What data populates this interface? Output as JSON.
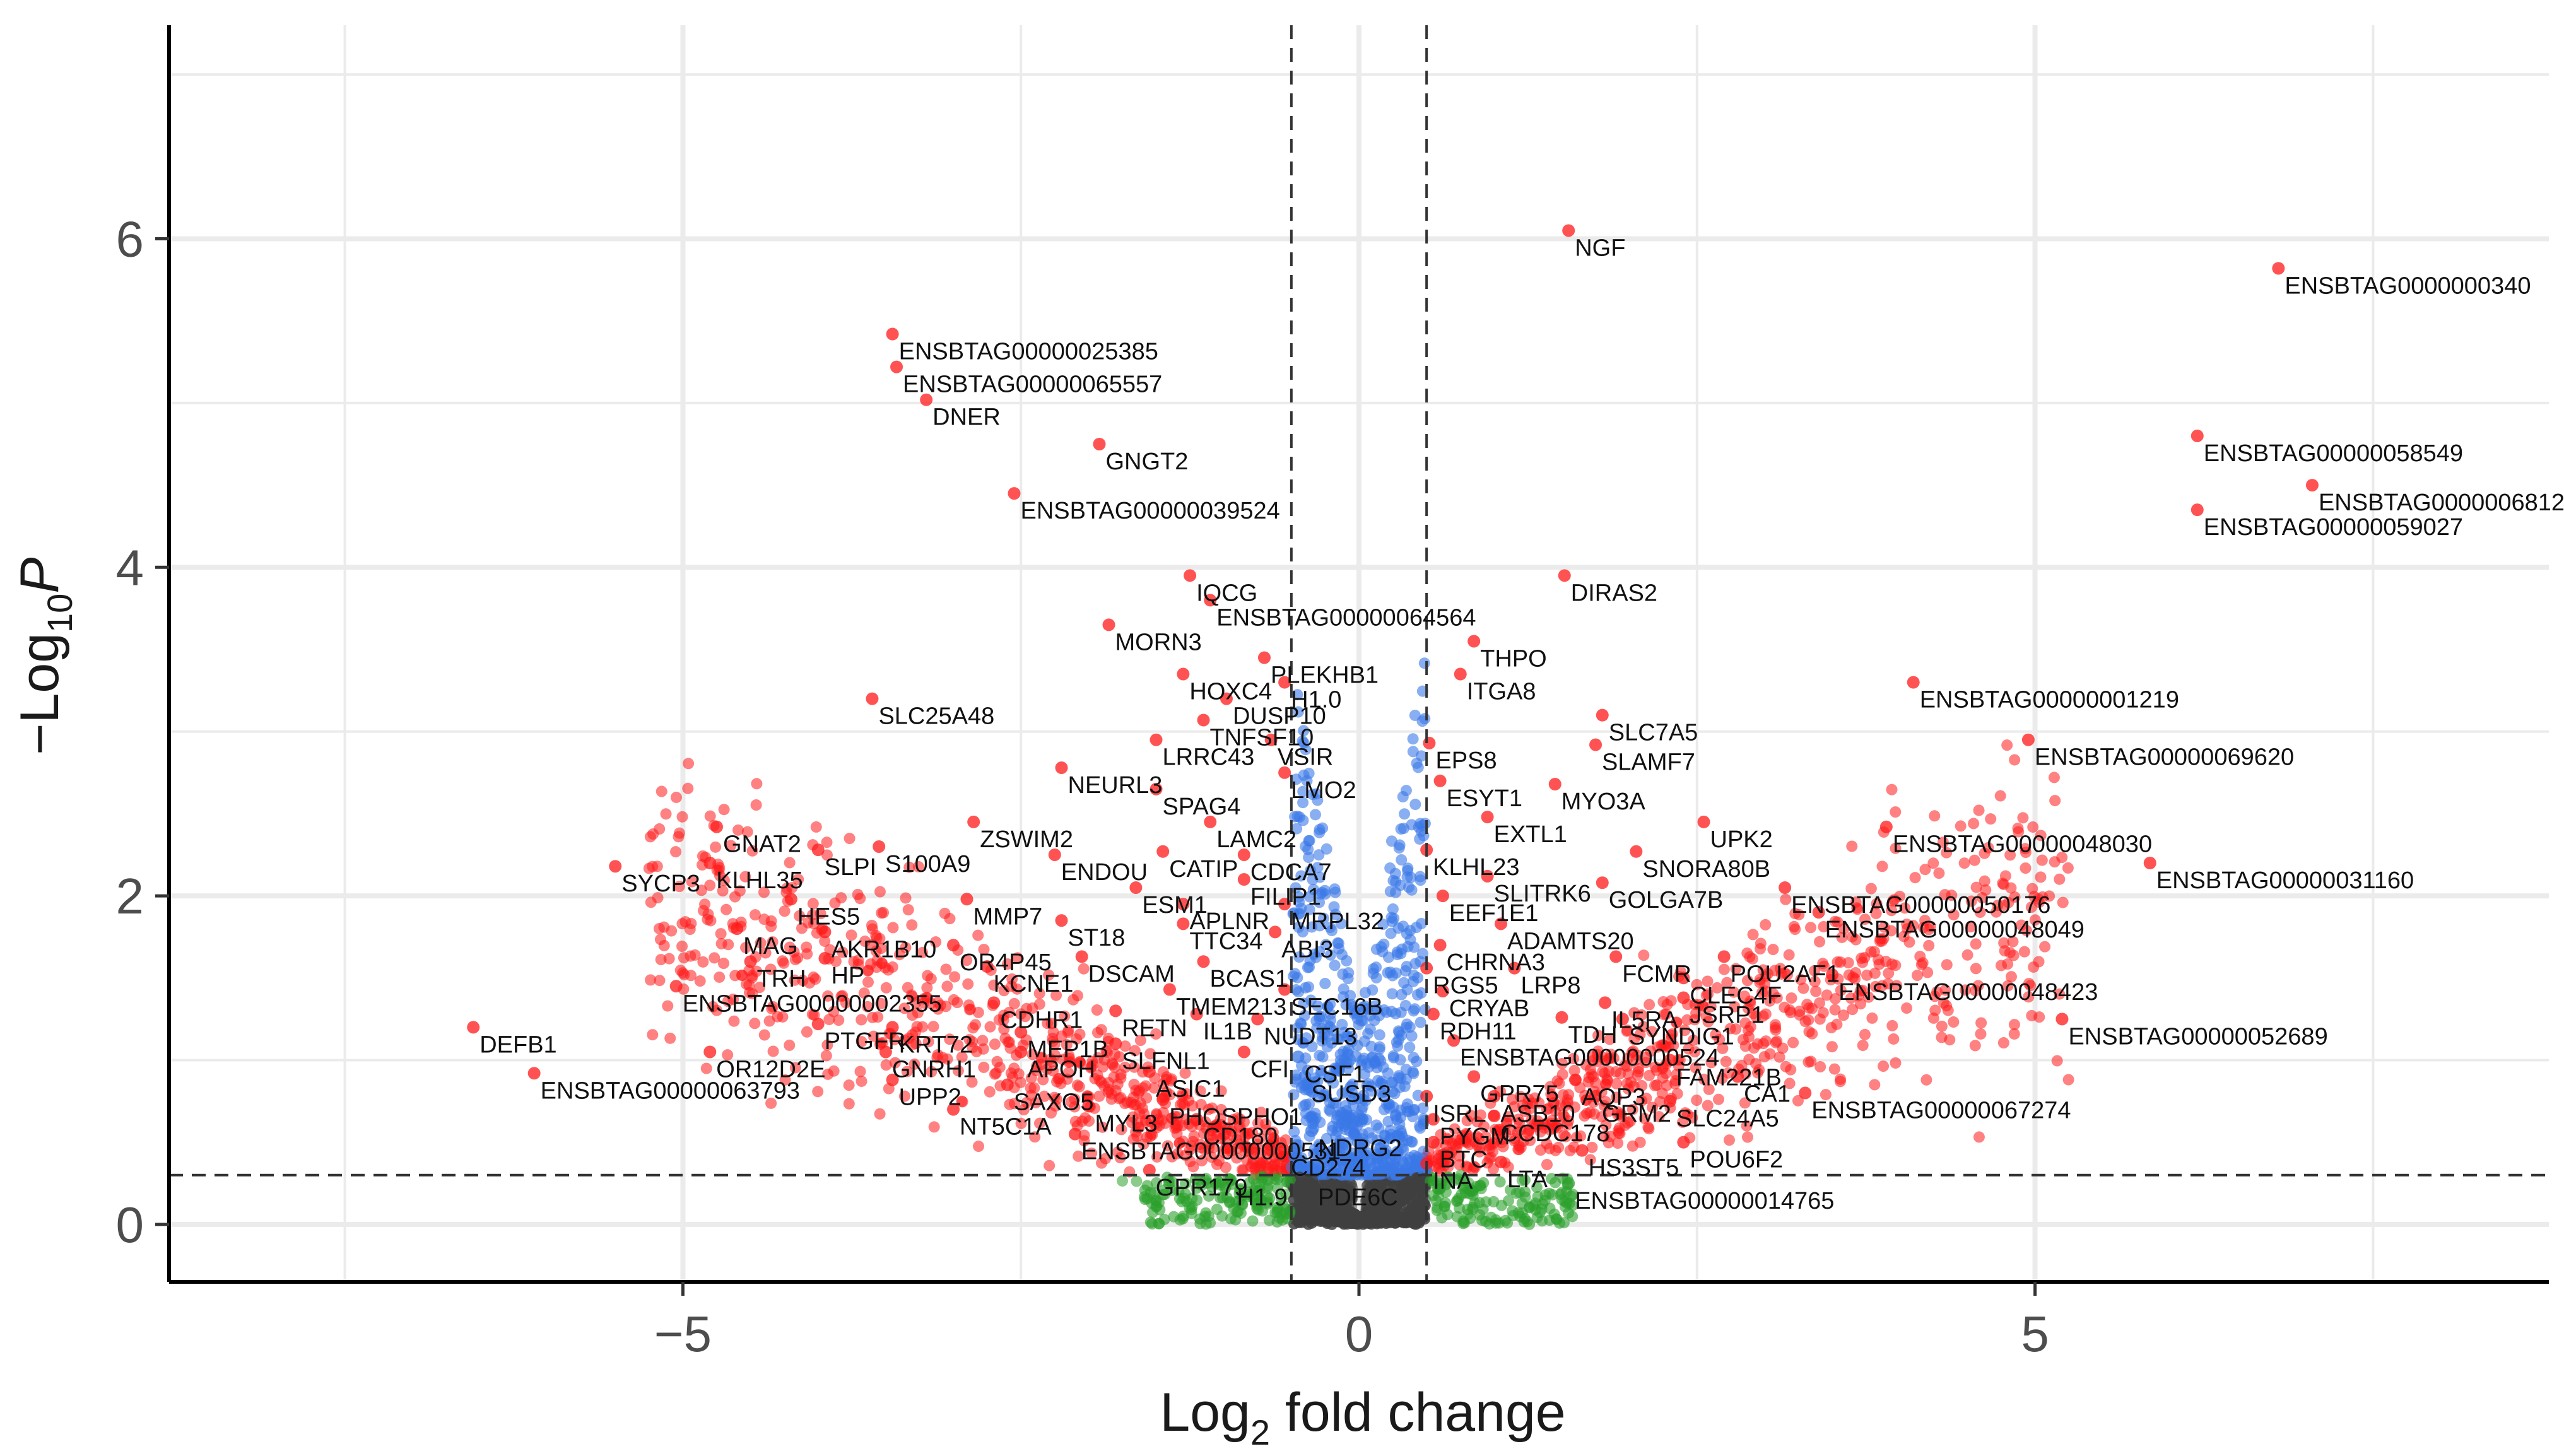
{
  "chart_data": {
    "type": "scatter",
    "title": "",
    "xlabel": "Log2 fold change",
    "ylabel": "-Log10 P",
    "xlabel_parts": {
      "base": "Log",
      "sub": "2",
      "rest": " fold change"
    },
    "ylabel_parts": {
      "prefix": "−Log",
      "sub": "10",
      "italic": "P"
    },
    "xlim": [
      -8.8,
      8.8
    ],
    "ylim": [
      -0.35,
      7.3
    ],
    "xticks": [
      -5,
      0,
      5
    ],
    "xtick_labels": [
      "−5",
      "0",
      "5"
    ],
    "yticks": [
      0,
      2,
      4,
      6
    ],
    "ytick_labels": [
      "0",
      "2",
      "4",
      "6"
    ],
    "grid": true,
    "thresholds": {
      "log2fc": 0.5,
      "neg_log10_p": 0.3
    },
    "colors": {
      "ns": "#404040",
      "log2fc_only": "#2ca02c",
      "p_only": "#3b78e7",
      "both": "#ff1a1a",
      "threshold_line": "#333333"
    },
    "labeled_points": [
      {
        "gene": "NGF",
        "x": 1.55,
        "y": 6.05
      },
      {
        "gene": "ENSBTAG0000000340",
        "x": 6.8,
        "y": 5.82
      },
      {
        "gene": "ENSBTAG00000025385",
        "x": -3.45,
        "y": 5.42
      },
      {
        "gene": "ENSBTAG00000065557",
        "x": -3.42,
        "y": 5.22
      },
      {
        "gene": "DNER",
        "x": -3.2,
        "y": 5.02
      },
      {
        "gene": "GNGT2",
        "x": -1.92,
        "y": 4.75
      },
      {
        "gene": "ENSBTAG00000039524",
        "x": -2.55,
        "y": 4.45
      },
      {
        "gene": "ENSBTAG00000058549",
        "x": 6.2,
        "y": 4.8
      },
      {
        "gene": "ENSBTAG0000006812",
        "x": 7.05,
        "y": 4.5
      },
      {
        "gene": "ENSBTAG00000059027",
        "x": 6.2,
        "y": 4.35
      },
      {
        "gene": "IQCG",
        "x": -1.25,
        "y": 3.95
      },
      {
        "gene": "ENSBTAG00000064564",
        "x": -1.1,
        "y": 3.8
      },
      {
        "gene": "DIRAS2",
        "x": 1.52,
        "y": 3.95
      },
      {
        "gene": "MORN3",
        "x": -1.85,
        "y": 3.65
      },
      {
        "gene": "THPO",
        "x": 0.85,
        "y": 3.55
      },
      {
        "gene": "PLEKHB1",
        "x": -0.7,
        "y": 3.45
      },
      {
        "gene": "HOXC4",
        "x": -1.3,
        "y": 3.35
      },
      {
        "gene": "H1.0",
        "x": -0.55,
        "y": 3.3
      },
      {
        "gene": "ITGA8",
        "x": 0.75,
        "y": 3.35
      },
      {
        "gene": "DUSP10",
        "x": -0.98,
        "y": 3.2
      },
      {
        "gene": "SLC25A48",
        "x": -3.6,
        "y": 3.2
      },
      {
        "gene": "ENSBTAG00000001219",
        "x": 4.1,
        "y": 3.3
      },
      {
        "gene": "TNFSF10",
        "x": -1.15,
        "y": 3.07
      },
      {
        "gene": "SLC7A5",
        "x": 1.8,
        "y": 3.1
      },
      {
        "gene": "LRRC43",
        "x": -1.5,
        "y": 2.95
      },
      {
        "gene": "VSIR",
        "x": -0.65,
        "y": 2.95
      },
      {
        "gene": "EPS8",
        "x": 0.52,
        "y": 2.93
      },
      {
        "gene": "SLAMF7",
        "x": 1.75,
        "y": 2.92
      },
      {
        "gene": "ENSBTAG00000069620",
        "x": 4.95,
        "y": 2.95
      },
      {
        "gene": "LMO2",
        "x": -0.55,
        "y": 2.75
      },
      {
        "gene": "NEURL3",
        "x": -2.2,
        "y": 2.78
      },
      {
        "gene": "SPAG4",
        "x": -1.5,
        "y": 2.65
      },
      {
        "gene": "ESYT1",
        "x": 0.6,
        "y": 2.7
      },
      {
        "gene": "MYO3A",
        "x": 1.45,
        "y": 2.68
      },
      {
        "gene": "GNAT2",
        "x": -4.75,
        "y": 2.42
      },
      {
        "gene": "ZSWIM2",
        "x": -2.85,
        "y": 2.45
      },
      {
        "gene": "LAMC2",
        "x": -1.1,
        "y": 2.45
      },
      {
        "gene": "EXTL1",
        "x": 0.95,
        "y": 2.48
      },
      {
        "gene": "UPK2",
        "x": 2.55,
        "y": 2.45
      },
      {
        "gene": "ENSBTAG00000048030",
        "x": 3.9,
        "y": 2.42
      },
      {
        "gene": "S100A9",
        "x": -3.55,
        "y": 2.3
      },
      {
        "gene": "SLPI",
        "x": -4.0,
        "y": 2.28
      },
      {
        "gene": "KLHL35",
        "x": -4.8,
        "y": 2.2
      },
      {
        "gene": "SYCP3",
        "x": -5.5,
        "y": 2.18
      },
      {
        "gene": "ENDOU",
        "x": -2.25,
        "y": 2.25
      },
      {
        "gene": "CATIP",
        "x": -1.45,
        "y": 2.27
      },
      {
        "gene": "CDCA7",
        "x": -0.85,
        "y": 2.25
      },
      {
        "gene": "KLHL23",
        "x": 0.5,
        "y": 2.28
      },
      {
        "gene": "SNORA80B",
        "x": 2.05,
        "y": 2.27
      },
      {
        "gene": "ENSBTAG00000031160",
        "x": 5.85,
        "y": 2.2
      },
      {
        "gene": "SLITRK6",
        "x": 0.95,
        "y": 2.12
      },
      {
        "gene": "FILIP1",
        "x": -0.85,
        "y": 2.1
      },
      {
        "gene": "ESM1",
        "x": -1.65,
        "y": 2.05
      },
      {
        "gene": "GOLGA7B",
        "x": 1.8,
        "y": 2.08
      },
      {
        "gene": "ENSBTAG00000050176",
        "x": 3.15,
        "y": 2.05
      },
      {
        "gene": "EEF1E1",
        "x": 0.62,
        "y": 2.0
      },
      {
        "gene": "APLNR",
        "x": -1.3,
        "y": 1.95
      },
      {
        "gene": "MRPL32",
        "x": -0.55,
        "y": 1.95
      },
      {
        "gene": "MMP7",
        "x": -2.9,
        "y": 1.98
      },
      {
        "gene": "HES5",
        "x": -4.2,
        "y": 1.98
      },
      {
        "gene": "ENSBTAG00000048049",
        "x": 3.4,
        "y": 1.9
      },
      {
        "gene": "ST18",
        "x": -2.2,
        "y": 1.85
      },
      {
        "gene": "TTC34",
        "x": -1.3,
        "y": 1.83
      },
      {
        "gene": "ADAMTS20",
        "x": 1.05,
        "y": 1.83
      },
      {
        "gene": "ABI3",
        "x": -0.62,
        "y": 1.78
      },
      {
        "gene": "MAG",
        "x": -4.6,
        "y": 1.8
      },
      {
        "gene": "AKR1B10",
        "x": -3.95,
        "y": 1.78
      },
      {
        "gene": "OR4P45",
        "x": -3.0,
        "y": 1.7
      },
      {
        "gene": "CHRNA3",
        "x": 0.6,
        "y": 1.7
      },
      {
        "gene": "TRH",
        "x": -4.5,
        "y": 1.6
      },
      {
        "gene": "HP",
        "x": -3.95,
        "y": 1.62
      },
      {
        "gene": "DSCAM",
        "x": -2.05,
        "y": 1.63
      },
      {
        "gene": "BCAS1",
        "x": -1.15,
        "y": 1.6
      },
      {
        "gene": "FCMR",
        "x": 1.9,
        "y": 1.63
      },
      {
        "gene": "POU2AF1",
        "x": 2.7,
        "y": 1.63
      },
      {
        "gene": "KCNE1",
        "x": -2.75,
        "y": 1.57
      },
      {
        "gene": "RGS5",
        "x": 0.5,
        "y": 1.56
      },
      {
        "gene": "LRP8",
        "x": 1.15,
        "y": 1.56
      },
      {
        "gene": "CLEC4F",
        "x": 2.4,
        "y": 1.5
      },
      {
        "gene": "ENSBTAG00000048423",
        "x": 3.5,
        "y": 1.52
      },
      {
        "gene": "ENSBTAG00000002355",
        "x": -5.05,
        "y": 1.45
      },
      {
        "gene": "TMEM213",
        "x": -1.4,
        "y": 1.43
      },
      {
        "gene": "SEC16B",
        "x": -0.55,
        "y": 1.43
      },
      {
        "gene": "CRYAB",
        "x": 0.62,
        "y": 1.42
      },
      {
        "gene": "CDHR1",
        "x": -2.7,
        "y": 1.35
      },
      {
        "gene": "IL5RA",
        "x": 1.82,
        "y": 1.35
      },
      {
        "gene": "JSRP1",
        "x": 2.4,
        "y": 1.38
      },
      {
        "gene": "RETN",
        "x": -1.8,
        "y": 1.3
      },
      {
        "gene": "IL1B",
        "x": -1.2,
        "y": 1.28
      },
      {
        "gene": "RDH11",
        "x": 0.55,
        "y": 1.28
      },
      {
        "gene": "TDH",
        "x": 1.5,
        "y": 1.26
      },
      {
        "gene": "SYNDIG1",
        "x": 1.95,
        "y": 1.25
      },
      {
        "gene": "ENSBTAG00000052689",
        "x": 5.2,
        "y": 1.25
      },
      {
        "gene": "NUDT13",
        "x": -0.75,
        "y": 1.25
      },
      {
        "gene": "DEFB1",
        "x": -6.55,
        "y": 1.2
      },
      {
        "gene": "PTGFR",
        "x": -4.0,
        "y": 1.22
      },
      {
        "gene": "KRT72",
        "x": -3.45,
        "y": 1.2
      },
      {
        "gene": "MEP1B",
        "x": -2.5,
        "y": 1.17
      },
      {
        "gene": "ENSBTAG00000000524",
        "x": 0.7,
        "y": 1.12
      },
      {
        "gene": "SLFNL1",
        "x": -1.8,
        "y": 1.1
      },
      {
        "gene": "CFI",
        "x": -0.85,
        "y": 1.05
      },
      {
        "gene": "APOH",
        "x": -2.5,
        "y": 1.05
      },
      {
        "gene": "GNRH1",
        "x": -3.5,
        "y": 1.05
      },
      {
        "gene": "OR12D2E",
        "x": -4.8,
        "y": 1.05
      },
      {
        "gene": "CSF1",
        "x": -0.45,
        "y": 1.02
      },
      {
        "gene": "FAM221B",
        "x": 2.3,
        "y": 1.0
      },
      {
        "gene": "ASIC1",
        "x": -1.55,
        "y": 0.93
      },
      {
        "gene": "SUSD3",
        "x": -0.4,
        "y": 0.9
      },
      {
        "gene": "CA1",
        "x": 2.8,
        "y": 0.9
      },
      {
        "gene": "GPR75",
        "x": 0.85,
        "y": 0.9
      },
      {
        "gene": "AQP3",
        "x": 1.6,
        "y": 0.88
      },
      {
        "gene": "ENSBTAG00000063793",
        "x": -6.1,
        "y": 0.92
      },
      {
        "gene": "UPP2",
        "x": -3.45,
        "y": 0.88
      },
      {
        "gene": "SAXO5",
        "x": -2.6,
        "y": 0.85
      },
      {
        "gene": "ISRL",
        "x": 0.5,
        "y": 0.78
      },
      {
        "gene": "ASB10",
        "x": 1.0,
        "y": 0.78
      },
      {
        "gene": "GRM2",
        "x": 1.75,
        "y": 0.78
      },
      {
        "gene": "SLC24A5",
        "x": 2.3,
        "y": 0.75
      },
      {
        "gene": "ENSBTAG00000067274",
        "x": 3.3,
        "y": 0.8
      },
      {
        "gene": "PHOSPHO1",
        "x": -1.45,
        "y": 0.76
      },
      {
        "gene": "NT5C1A",
        "x": -3.0,
        "y": 0.7
      },
      {
        "gene": "MYL3",
        "x": -2.0,
        "y": 0.72
      },
      {
        "gene": "CD180",
        "x": -1.2,
        "y": 0.64
      },
      {
        "gene": "CCDC178",
        "x": 1.0,
        "y": 0.66
      },
      {
        "gene": "PYGM",
        "x": 0.55,
        "y": 0.64
      },
      {
        "gene": "ENSBTAG00000000531",
        "x": -2.1,
        "y": 0.55
      },
      {
        "gene": "NDRG2",
        "x": -0.35,
        "y": 0.57
      },
      {
        "gene": "BTC",
        "x": 0.55,
        "y": 0.5
      },
      {
        "gene": "POU6F2",
        "x": 2.4,
        "y": 0.5
      },
      {
        "gene": "HS3ST5",
        "x": 1.65,
        "y": 0.45
      },
      {
        "gene": "CD274",
        "x": -0.55,
        "y": 0.45
      },
      {
        "gene": "INA",
        "x": 0.5,
        "y": 0.37
      },
      {
        "gene": "LTA",
        "x": 1.05,
        "y": 0.38
      },
      {
        "gene": "GPR179",
        "x": -1.55,
        "y": 0.33
      },
      {
        "gene": "H1.9",
        "x": -0.95,
        "y": 0.27
      },
      {
        "gene": "PDE6C",
        "x": -0.35,
        "y": 0.27
      },
      {
        "gene": "ENSBTAG00000014765",
        "x": 1.55,
        "y": 0.25
      }
    ]
  }
}
